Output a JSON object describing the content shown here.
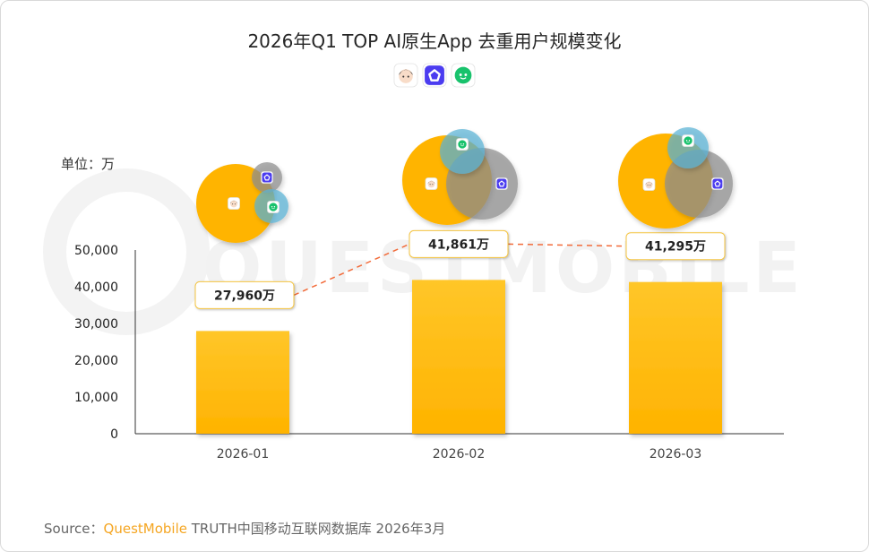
{
  "chart_data": {
    "type": "bar",
    "title": "2026年Q1 TOP AI原生App 去重用户规模变化",
    "unit_label": "单位：万",
    "categories": [
      "2026-01",
      "2026-02",
      "2026-03"
    ],
    "values": [
      27960,
      41861,
      41295
    ],
    "value_labels": [
      "27,960万",
      "41,861万",
      "41,295万"
    ],
    "ylim": [
      0,
      50000
    ],
    "yticks": [
      0,
      10000,
      20000,
      30000,
      40000,
      50000
    ],
    "ytick_labels": [
      "0",
      "10,000",
      "20,000",
      "30,000",
      "40,000",
      "50,000"
    ],
    "grid": false,
    "trend_line": "dashed",
    "colors": {
      "bar_top": "#ffc629",
      "bar_bottom": "#ffb300",
      "trend": "#f26b3a",
      "label_border": "#f5c542"
    },
    "app_icons": [
      "doubao-icon",
      "yuanbao-icon",
      "wechat-app-icon"
    ],
    "venn_overlaps": [
      {
        "month": "2026-01",
        "apps": [
          "doubao-icon",
          "yuanbao-icon",
          "wechat-app-icon"
        ]
      },
      {
        "month": "2026-02",
        "apps": [
          "doubao-icon",
          "yuanbao-icon",
          "wechat-app-icon"
        ]
      },
      {
        "month": "2026-03",
        "apps": [
          "doubao-icon",
          "yuanbao-icon",
          "wechat-app-icon"
        ]
      }
    ]
  },
  "watermark": "QUESTMOBILE",
  "source": {
    "prefix": "Source：",
    "brand": "QuestMobile",
    "suffix": " TRUTH中国移动互联网数据库 2026年3月"
  }
}
